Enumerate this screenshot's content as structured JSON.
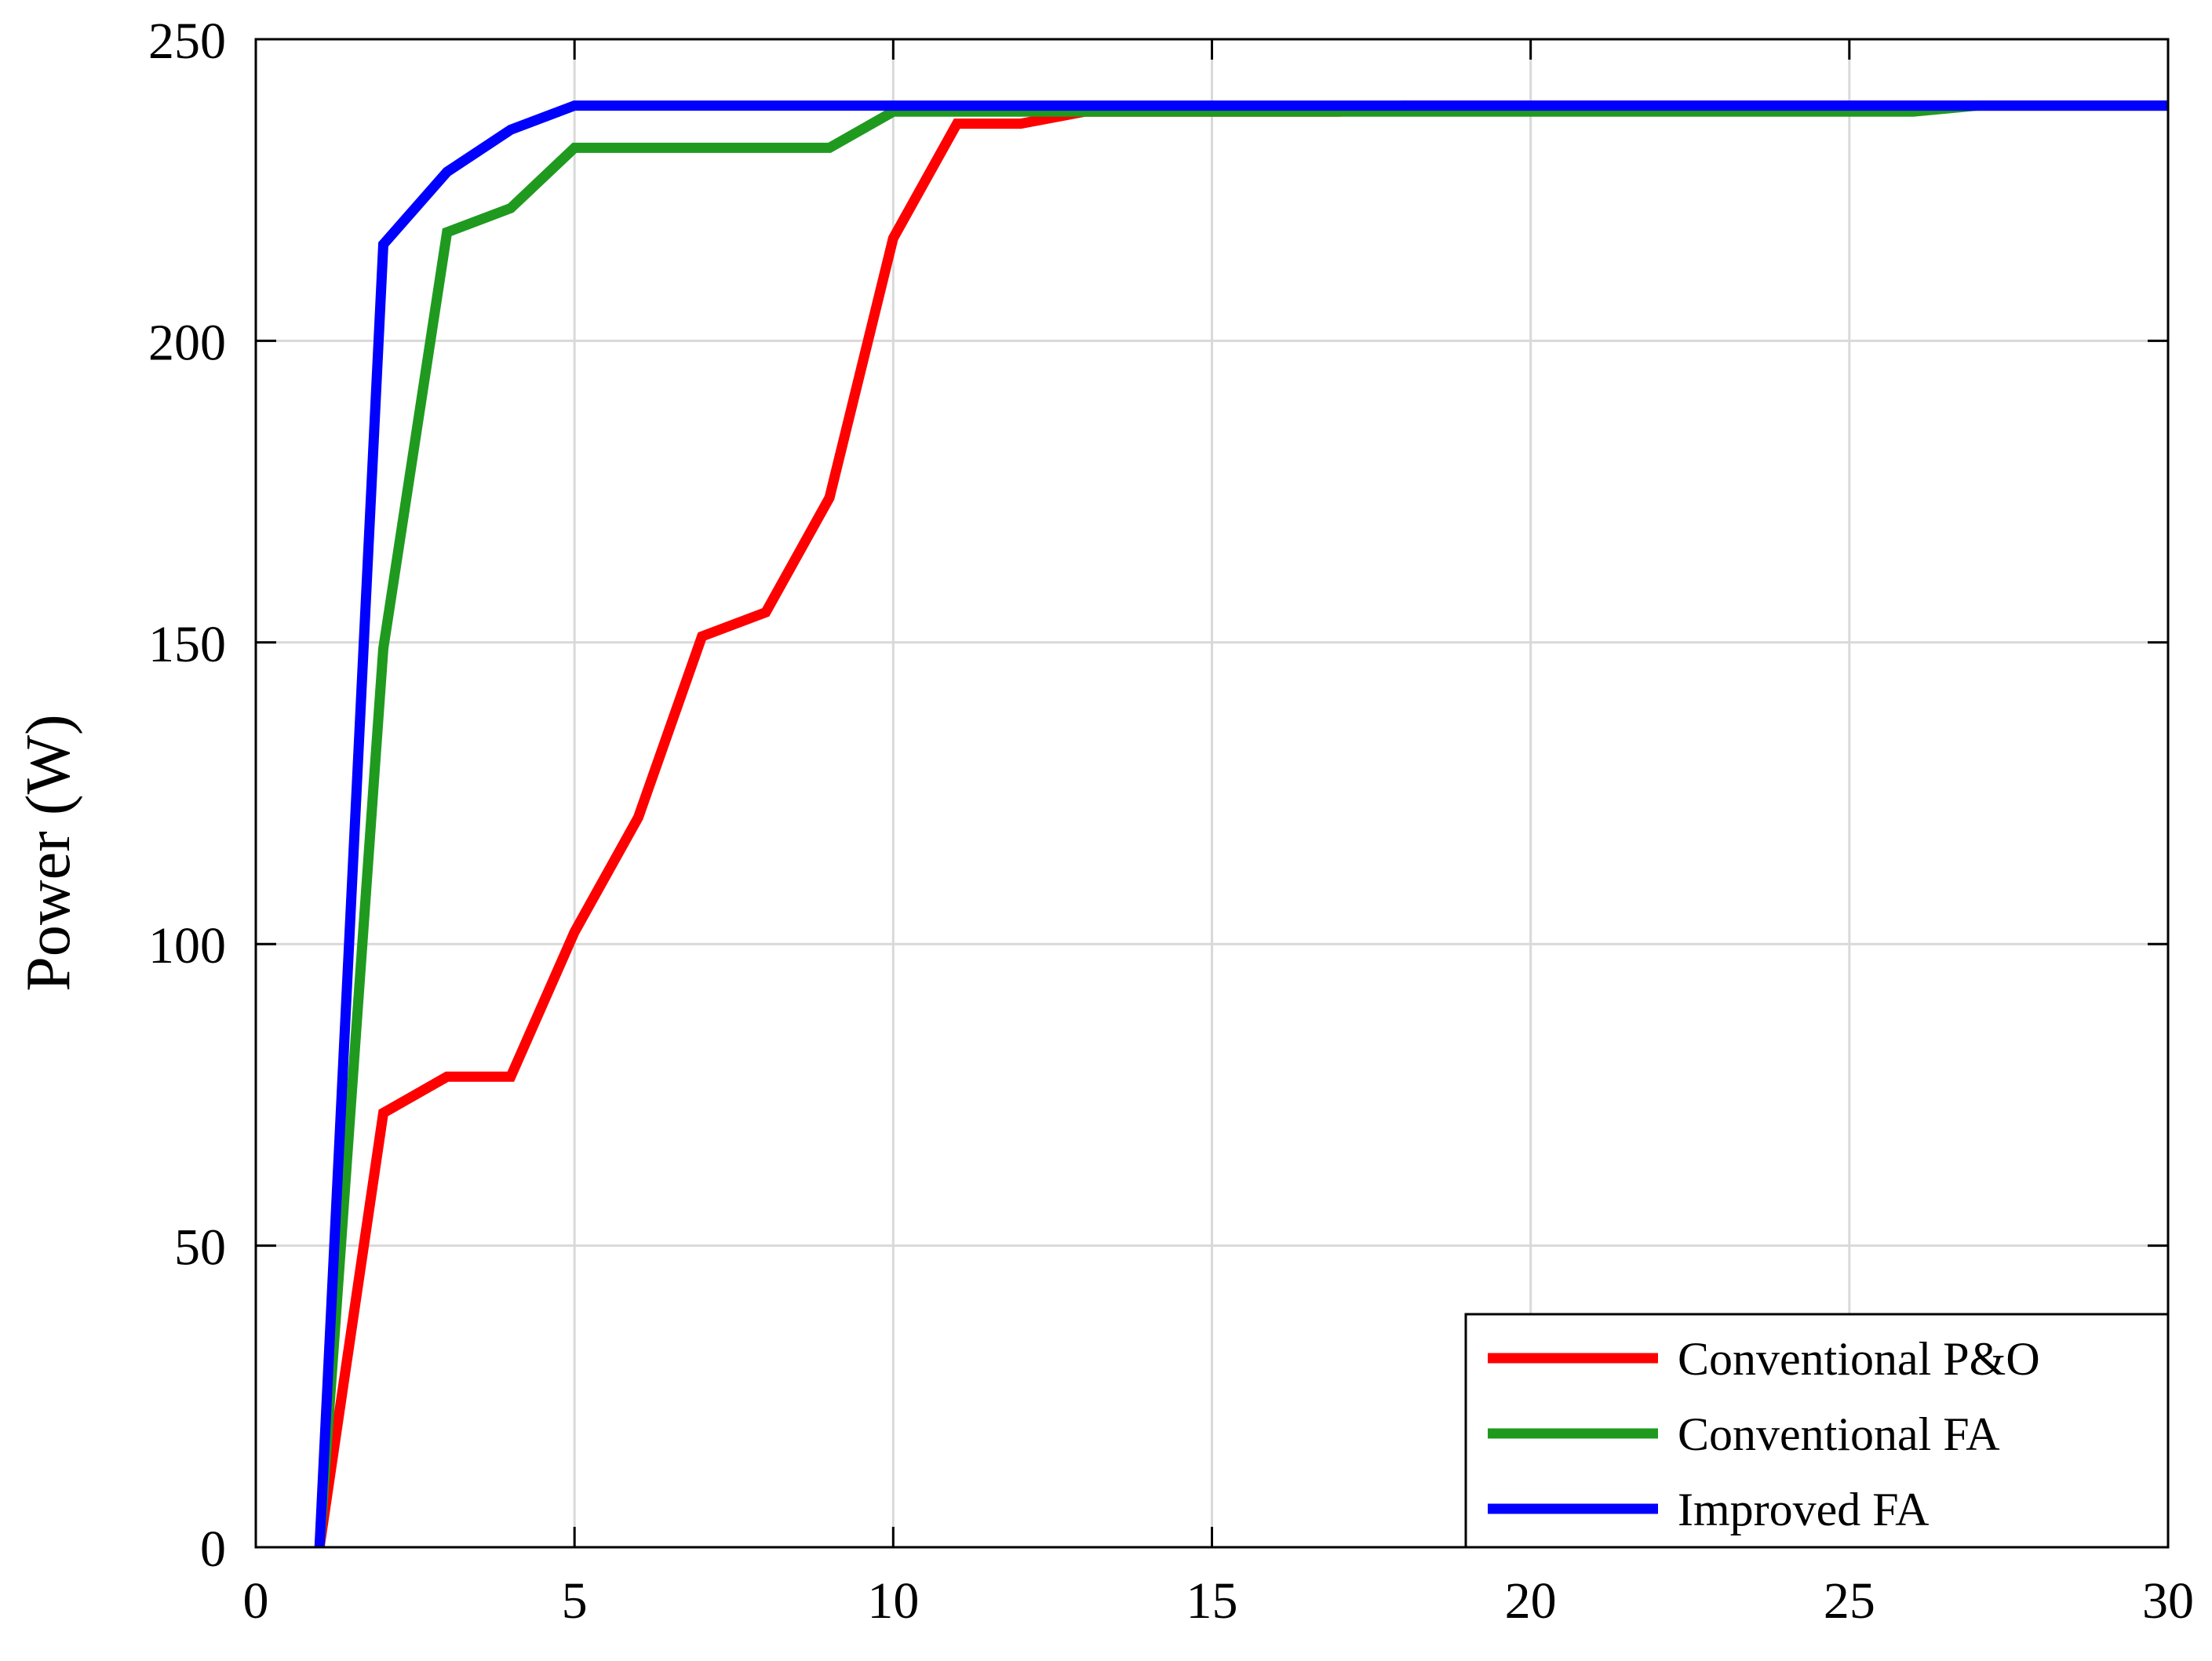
{
  "chart_data": {
    "type": "line",
    "title": "",
    "xlabel": "",
    "ylabel": "Power (W)",
    "xlim": [
      0,
      30
    ],
    "ylim": [
      0,
      250
    ],
    "xticks": [
      0,
      5,
      10,
      15,
      20,
      25,
      30
    ],
    "yticks": [
      0,
      50,
      100,
      150,
      200,
      250
    ],
    "grid": true,
    "legend_position": "bottom-right",
    "series": [
      {
        "name": "Conventional P&O",
        "color": "#ff0000",
        "x": [
          1,
          2,
          3,
          4,
          5,
          6,
          7,
          8,
          9,
          10,
          11,
          12,
          13,
          14,
          15,
          16,
          17,
          18,
          19,
          20,
          21,
          22,
          23,
          24,
          25,
          26,
          27,
          28,
          29,
          30
        ],
        "y": [
          0,
          72,
          78,
          78,
          102,
          121,
          151,
          155,
          174,
          217,
          236,
          236,
          238,
          238,
          238,
          238,
          238,
          239,
          239,
          239,
          239,
          239,
          239,
          239,
          239,
          239,
          239,
          239,
          239,
          239
        ]
      },
      {
        "name": "Conventional FA",
        "color": "#1f9a1f",
        "x": [
          1,
          2,
          3,
          4,
          5,
          6,
          7,
          8,
          9,
          10,
          11,
          12,
          13,
          14,
          15,
          16,
          17,
          18,
          19,
          20,
          21,
          22,
          23,
          24,
          25,
          26,
          27,
          28,
          29,
          30
        ],
        "y": [
          0,
          149,
          218,
          222,
          232,
          232,
          232,
          232,
          232,
          238,
          238,
          238,
          238,
          238,
          238,
          238,
          238,
          238,
          238,
          238,
          238,
          238,
          238,
          238,
          238,
          238,
          239,
          239,
          239,
          239
        ]
      },
      {
        "name": "Improved FA",
        "color": "#0000ff",
        "x": [
          1,
          2,
          3,
          4,
          5,
          6,
          7,
          8,
          9,
          10,
          11,
          12,
          13,
          14,
          15,
          16,
          17,
          18,
          19,
          20,
          21,
          22,
          23,
          24,
          25,
          26,
          27,
          28,
          29,
          30
        ],
        "y": [
          0,
          216,
          228,
          235,
          239,
          239,
          239,
          239,
          239,
          239,
          239,
          239,
          239,
          239,
          239,
          239,
          239,
          239,
          239,
          239,
          239,
          239,
          239,
          239,
          239,
          239,
          239,
          239,
          239,
          239
        ]
      }
    ]
  }
}
